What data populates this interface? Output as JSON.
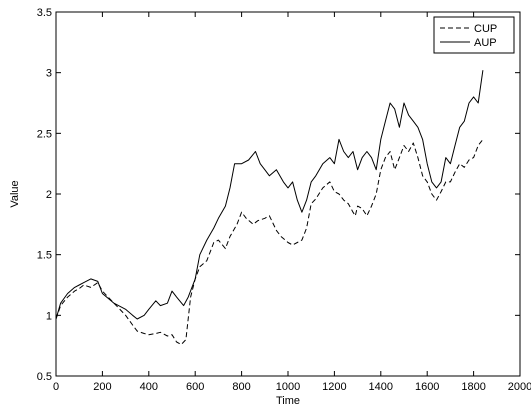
{
  "chart_data": {
    "type": "line",
    "xlabel": "Time",
    "ylabel": "Value",
    "xlim": [
      0,
      2000
    ],
    "ylim": [
      0.5,
      3.5
    ],
    "xticks": [
      "0",
      "200",
      "400",
      "600",
      "800",
      "1000",
      "1200",
      "1400",
      "1600",
      "1800",
      "2000"
    ],
    "yticks": [
      "0.5",
      "1",
      "1.5",
      "2",
      "2.5",
      "3",
      "3.5"
    ],
    "grid": false,
    "legend_position": "top-right",
    "series": [
      {
        "name": "CUP",
        "line_style": "dashed",
        "color": "#000000",
        "x": [
          0,
          20,
          50,
          80,
          100,
          120,
          150,
          180,
          200,
          250,
          300,
          330,
          350,
          380,
          400,
          430,
          450,
          480,
          500,
          520,
          540,
          560,
          580,
          600,
          620,
          650,
          680,
          700,
          730,
          750,
          780,
          800,
          820,
          850,
          870,
          900,
          920,
          950,
          970,
          1000,
          1020,
          1040,
          1060,
          1080,
          1100,
          1120,
          1150,
          1180,
          1200,
          1220,
          1240,
          1260,
          1280,
          1290,
          1300,
          1320,
          1340,
          1360,
          1380,
          1400,
          1420,
          1440,
          1460,
          1480,
          1500,
          1520,
          1540,
          1560,
          1580,
          1600,
          1620,
          1640,
          1660,
          1680,
          1700,
          1720,
          1740,
          1760,
          1780,
          1800,
          1820,
          1840
        ],
        "y": [
          0.97,
          1.08,
          1.15,
          1.2,
          1.22,
          1.25,
          1.23,
          1.27,
          1.2,
          1.1,
          1.0,
          0.92,
          0.87,
          0.85,
          0.84,
          0.85,
          0.86,
          0.83,
          0.84,
          0.78,
          0.76,
          0.8,
          1.15,
          1.3,
          1.4,
          1.45,
          1.6,
          1.62,
          1.55,
          1.65,
          1.75,
          1.85,
          1.8,
          1.75,
          1.78,
          1.8,
          1.82,
          1.7,
          1.65,
          1.6,
          1.58,
          1.6,
          1.62,
          1.72,
          1.92,
          1.96,
          2.05,
          2.1,
          2.02,
          2.0,
          1.95,
          1.92,
          1.85,
          1.82,
          1.9,
          1.88,
          1.82,
          1.9,
          2.0,
          2.2,
          2.3,
          2.35,
          2.2,
          2.3,
          2.4,
          2.35,
          2.42,
          2.3,
          2.15,
          2.1,
          2.0,
          1.95,
          2.02,
          2.1,
          2.1,
          2.18,
          2.25,
          2.22,
          2.28,
          2.3,
          2.4,
          2.45
        ]
      },
      {
        "name": "AUP",
        "line_style": "solid",
        "color": "#000000",
        "x": [
          0,
          20,
          50,
          80,
          100,
          120,
          150,
          180,
          200,
          250,
          300,
          330,
          350,
          380,
          400,
          430,
          450,
          480,
          500,
          520,
          550,
          570,
          600,
          620,
          650,
          680,
          700,
          730,
          750,
          770,
          800,
          830,
          860,
          880,
          900,
          920,
          950,
          980,
          1000,
          1020,
          1040,
          1060,
          1080,
          1100,
          1120,
          1150,
          1180,
          1200,
          1220,
          1240,
          1260,
          1280,
          1300,
          1320,
          1340,
          1360,
          1380,
          1400,
          1420,
          1440,
          1460,
          1480,
          1500,
          1520,
          1540,
          1560,
          1580,
          1600,
          1620,
          1640,
          1660,
          1680,
          1700,
          1720,
          1740,
          1760,
          1780,
          1800,
          1820,
          1840
        ],
        "y": [
          0.97,
          1.1,
          1.18,
          1.23,
          1.25,
          1.27,
          1.3,
          1.28,
          1.18,
          1.1,
          1.05,
          1.0,
          0.97,
          1.0,
          1.05,
          1.12,
          1.08,
          1.1,
          1.2,
          1.15,
          1.08,
          1.15,
          1.3,
          1.5,
          1.62,
          1.72,
          1.8,
          1.9,
          2.05,
          2.25,
          2.25,
          2.28,
          2.35,
          2.25,
          2.2,
          2.15,
          2.2,
          2.1,
          2.05,
          2.1,
          1.95,
          1.85,
          1.95,
          2.1,
          2.15,
          2.25,
          2.3,
          2.25,
          2.45,
          2.35,
          2.3,
          2.35,
          2.2,
          2.3,
          2.35,
          2.3,
          2.2,
          2.45,
          2.6,
          2.75,
          2.7,
          2.55,
          2.75,
          2.65,
          2.6,
          2.55,
          2.45,
          2.25,
          2.1,
          2.05,
          2.1,
          2.3,
          2.25,
          2.4,
          2.55,
          2.6,
          2.75,
          2.8,
          2.75,
          3.02
        ]
      }
    ]
  }
}
